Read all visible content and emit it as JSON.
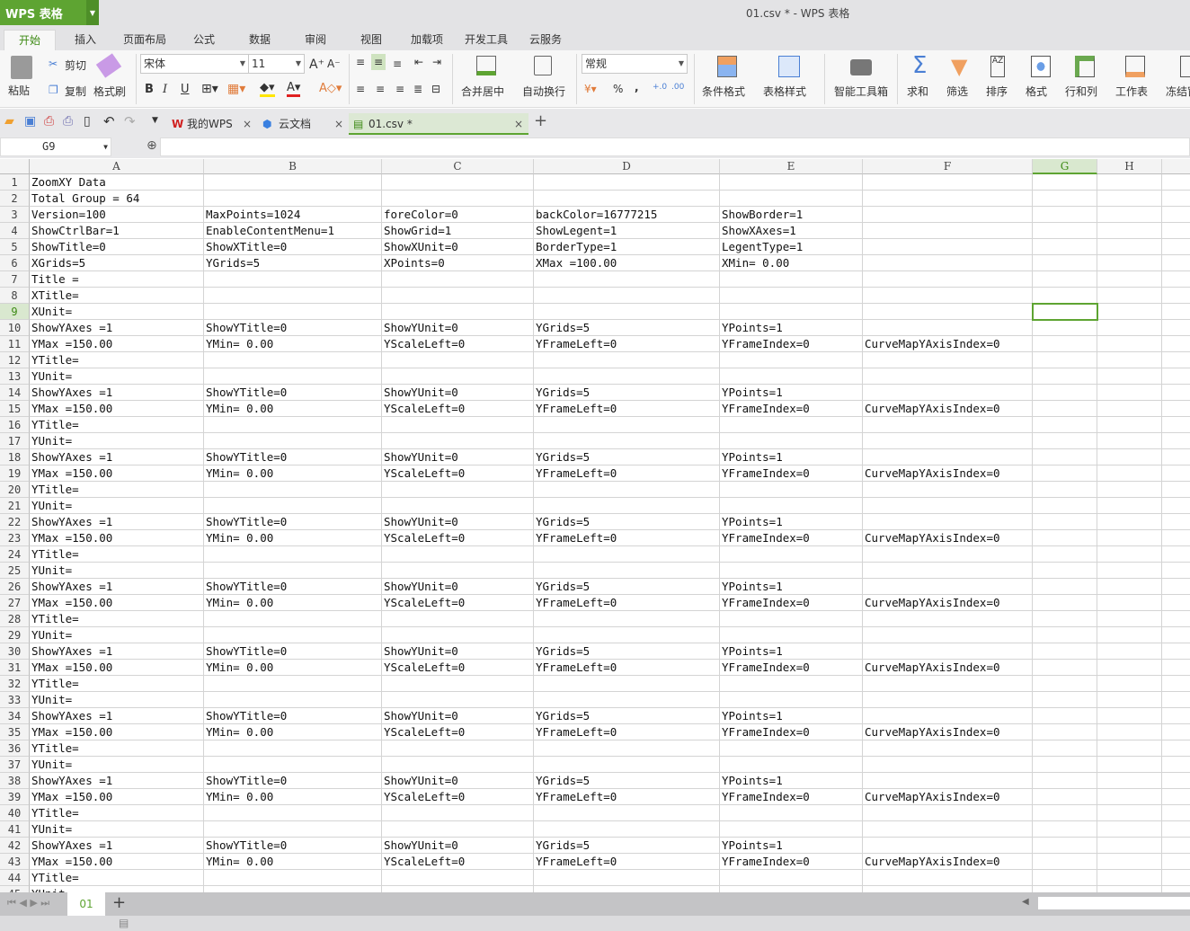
{
  "app": {
    "name": "WPS 表格",
    "window_title": "01.csv * - WPS 表格"
  },
  "menu_tabs": [
    "开始",
    "插入",
    "页面布局",
    "公式",
    "数据",
    "审阅",
    "视图",
    "加载项",
    "开发工具",
    "云服务"
  ],
  "ribbon": {
    "paste": "粘贴",
    "cut": "剪切",
    "copy": "复制",
    "format_painter": "格式刷",
    "font_name": "宋体",
    "font_size": "11",
    "bold": "B",
    "italic": "I",
    "underline": "U",
    "merge_center": "合并居中",
    "wrap_text": "自动换行",
    "number_format": "常规",
    "percent": "%",
    "comma": ",",
    "conditional_format": "条件格式",
    "table_style": "表格样式",
    "smart_toolbox": "智能工具箱",
    "sum": "求和",
    "filter": "筛选",
    "sort": "排序",
    "format": "格式",
    "rows_cols": "行和列",
    "worksheet": "工作表",
    "freeze": "冻结窗格"
  },
  "doc_tabs": [
    {
      "label": "我的WPS"
    },
    {
      "label": "云文档"
    },
    {
      "label": "01.csv *",
      "active": true
    }
  ],
  "name_box": "G9",
  "fx": "fx",
  "formula": "",
  "columns": [
    "A",
    "B",
    "C",
    "D",
    "E",
    "F",
    "G",
    "H"
  ],
  "selected_cell": "G9",
  "rows": [
    [
      "ZoomXY Data",
      "",
      "",
      "",
      "",
      ""
    ],
    [
      "Total Group = 64",
      "",
      "",
      "",
      "",
      ""
    ],
    [
      "Version=100",
      "MaxPoints=1024",
      "foreColor=0",
      "backColor=16777215",
      "ShowBorder=1",
      ""
    ],
    [
      "ShowCtrlBar=1",
      "EnableContentMenu=1",
      "ShowGrid=1",
      "ShowLegent=1",
      "ShowXAxes=1",
      ""
    ],
    [
      "ShowTitle=0",
      "ShowXTitle=0",
      "ShowXUnit=0",
      "BorderType=1",
      "LegentType=1",
      ""
    ],
    [
      "XGrids=5",
      "YGrids=5",
      "XPoints=0",
      "XMax =100.00",
      "XMin= 0.00",
      ""
    ],
    [
      "Title =",
      "",
      "",
      "",
      "",
      ""
    ],
    [
      "XTitle=",
      "",
      "",
      "",
      "",
      ""
    ],
    [
      "XUnit=",
      "",
      "",
      "",
      "",
      ""
    ],
    [
      "ShowYAxes =1",
      "ShowYTitle=0",
      "ShowYUnit=0",
      "YGrids=5",
      "YPoints=1",
      ""
    ],
    [
      "YMax =150.00",
      "YMin= 0.00",
      "YScaleLeft=0",
      "YFrameLeft=0",
      "YFrameIndex=0",
      "CurveMapYAxisIndex=0"
    ],
    [
      "YTitle=",
      "",
      "",
      "",
      "",
      ""
    ],
    [
      "YUnit=",
      "",
      "",
      "",
      "",
      ""
    ],
    [
      "ShowYAxes =1",
      "ShowYTitle=0",
      "ShowYUnit=0",
      "YGrids=5",
      "YPoints=1",
      ""
    ],
    [
      "YMax =150.00",
      "YMin= 0.00",
      "YScaleLeft=0",
      "YFrameLeft=0",
      "YFrameIndex=0",
      "CurveMapYAxisIndex=0"
    ],
    [
      "YTitle=",
      "",
      "",
      "",
      "",
      ""
    ],
    [
      "YUnit=",
      "",
      "",
      "",
      "",
      ""
    ],
    [
      "ShowYAxes =1",
      "ShowYTitle=0",
      "ShowYUnit=0",
      "YGrids=5",
      "YPoints=1",
      ""
    ],
    [
      "YMax =150.00",
      "YMin= 0.00",
      "YScaleLeft=0",
      "YFrameLeft=0",
      "YFrameIndex=0",
      "CurveMapYAxisIndex=0"
    ],
    [
      "YTitle=",
      "",
      "",
      "",
      "",
      ""
    ],
    [
      "YUnit=",
      "",
      "",
      "",
      "",
      ""
    ],
    [
      "ShowYAxes =1",
      "ShowYTitle=0",
      "ShowYUnit=0",
      "YGrids=5",
      "YPoints=1",
      ""
    ],
    [
      "YMax =150.00",
      "YMin= 0.00",
      "YScaleLeft=0",
      "YFrameLeft=0",
      "YFrameIndex=0",
      "CurveMapYAxisIndex=0"
    ],
    [
      "YTitle=",
      "",
      "",
      "",
      "",
      ""
    ],
    [
      "YUnit=",
      "",
      "",
      "",
      "",
      ""
    ],
    [
      "ShowYAxes =1",
      "ShowYTitle=0",
      "ShowYUnit=0",
      "YGrids=5",
      "YPoints=1",
      ""
    ],
    [
      "YMax =150.00",
      "YMin= 0.00",
      "YScaleLeft=0",
      "YFrameLeft=0",
      "YFrameIndex=0",
      "CurveMapYAxisIndex=0"
    ],
    [
      "YTitle=",
      "",
      "",
      "",
      "",
      ""
    ],
    [
      "YUnit=",
      "",
      "",
      "",
      "",
      ""
    ],
    [
      "ShowYAxes =1",
      "ShowYTitle=0",
      "ShowYUnit=0",
      "YGrids=5",
      "YPoints=1",
      ""
    ],
    [
      "YMax =150.00",
      "YMin= 0.00",
      "YScaleLeft=0",
      "YFrameLeft=0",
      "YFrameIndex=0",
      "CurveMapYAxisIndex=0"
    ],
    [
      "YTitle=",
      "",
      "",
      "",
      "",
      ""
    ],
    [
      "YUnit=",
      "",
      "",
      "",
      "",
      ""
    ],
    [
      "ShowYAxes =1",
      "ShowYTitle=0",
      "ShowYUnit=0",
      "YGrids=5",
      "YPoints=1",
      ""
    ],
    [
      "YMax =150.00",
      "YMin= 0.00",
      "YScaleLeft=0",
      "YFrameLeft=0",
      "YFrameIndex=0",
      "CurveMapYAxisIndex=0"
    ],
    [
      "YTitle=",
      "",
      "",
      "",
      "",
      ""
    ],
    [
      "YUnit=",
      "",
      "",
      "",
      "",
      ""
    ],
    [
      "ShowYAxes =1",
      "ShowYTitle=0",
      "ShowYUnit=0",
      "YGrids=5",
      "YPoints=1",
      ""
    ],
    [
      "YMax =150.00",
      "YMin= 0.00",
      "YScaleLeft=0",
      "YFrameLeft=0",
      "YFrameIndex=0",
      "CurveMapYAxisIndex=0"
    ],
    [
      "YTitle=",
      "",
      "",
      "",
      "",
      ""
    ],
    [
      "YUnit=",
      "",
      "",
      "",
      "",
      ""
    ],
    [
      "ShowYAxes =1",
      "ShowYTitle=0",
      "ShowYUnit=0",
      "YGrids=5",
      "YPoints=1",
      ""
    ],
    [
      "YMax =150.00",
      "YMin= 0.00",
      "YScaleLeft=0",
      "YFrameLeft=0",
      "YFrameIndex=0",
      "CurveMapYAxisIndex=0"
    ],
    [
      "YTitle=",
      "",
      "",
      "",
      "",
      ""
    ],
    [
      "YUnit=",
      "",
      "",
      "",
      "",
      ""
    ]
  ],
  "sheet_tabs": [
    "01"
  ],
  "colors": {
    "accent": "#5ea432",
    "selected_header": "#d9e8cf"
  }
}
